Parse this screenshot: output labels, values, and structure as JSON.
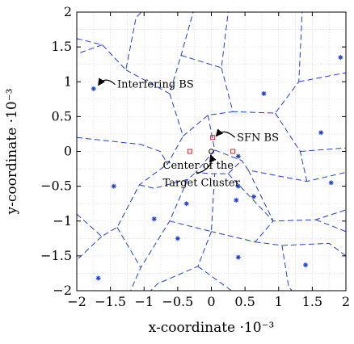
{
  "chart_data": {
    "type": "scatter",
    "title": "",
    "xlabel": "x-coordinate ·10⁻³",
    "ylabel": "y-coordinate ·10⁻³",
    "xlim": [
      -2,
      2
    ],
    "ylim": [
      -2,
      2
    ],
    "x_ticks": [
      -2,
      -1.5,
      -1,
      -0.5,
      0,
      0.5,
      1,
      1.5,
      2
    ],
    "y_ticks": [
      -2,
      -1.5,
      -1,
      -0.5,
      0,
      0.5,
      1,
      1.5,
      2
    ],
    "x_tick_labels": [
      "−2",
      "−1.5",
      "−1",
      "−0.5",
      "0",
      "0.5",
      "1",
      "1.5",
      "2"
    ],
    "y_tick_labels": [
      "−2",
      "−1.5",
      "−1",
      "−0.5",
      "0",
      "0.5",
      "1",
      "1.5",
      "2"
    ],
    "grid": true,
    "colors": {
      "bs": "#1f3fd6",
      "sfn": "#d62020",
      "cell_edges": "#1f3fd6",
      "grid": "#d8d8d8"
    },
    "series": [
      {
        "marker": "asterisk",
        "points": [
          [
            -1.75,
            0.9
          ],
          [
            -1.45,
            -0.5
          ],
          [
            -0.85,
            -0.97
          ],
          [
            -0.37,
            -0.75
          ],
          [
            -0.5,
            -1.25
          ],
          [
            -1.68,
            -1.82
          ],
          [
            0.4,
            -0.5
          ],
          [
            0.63,
            -0.65
          ],
          [
            0.37,
            -0.7
          ],
          [
            0.4,
            -0.07
          ],
          [
            0.78,
            0.83
          ],
          [
            1.63,
            0.27
          ],
          [
            1.78,
            -0.45
          ],
          [
            1.4,
            -1.63
          ],
          [
            0.4,
            -1.52
          ],
          [
            1.92,
            1.35
          ]
        ]
      },
      {
        "marker": "square",
        "points": [
          [
            -0.32,
            0.0
          ],
          [
            0.02,
            0.2
          ],
          [
            0.32,
            0.0
          ]
        ]
      },
      {
        "marker": "circle",
        "points": [
          [
            0.0,
            0.0
          ]
        ]
      }
    ],
    "cell_edges": [
      [
        [
          -2,
          1.62
        ],
        [
          -1.62,
          1.53
        ],
        [
          -1.27,
          1.17
        ],
        [
          -1.12,
          1.92
        ],
        [
          -1.04,
          2
        ]
      ],
      [
        [
          -1.62,
          1.53
        ],
        [
          -2,
          1.4
        ]
      ],
      [
        [
          -1.27,
          1.17
        ],
        [
          -0.62,
          0.83
        ],
        [
          -0.45,
          1.38
        ],
        [
          -0.27,
          2
        ]
      ],
      [
        [
          -0.45,
          1.38
        ],
        [
          0.15,
          1.2
        ],
        [
          0.25,
          2
        ]
      ],
      [
        [
          0.15,
          1.2
        ],
        [
          0.32,
          0.57
        ],
        [
          0.95,
          0.55
        ],
        [
          1.3,
          1.0
        ],
        [
          1.35,
          2
        ]
      ],
      [
        [
          1.3,
          1.0
        ],
        [
          2,
          1.13
        ]
      ],
      [
        [
          0.95,
          0.55
        ],
        [
          1.32,
          0.0
        ],
        [
          1.42,
          -0.43
        ]
      ],
      [
        [
          -0.62,
          0.83
        ],
        [
          -0.42,
          0.22
        ],
        [
          -0.05,
          0.52
        ],
        [
          0.32,
          0.57
        ]
      ],
      [
        [
          -2,
          0.2
        ],
        [
          -1.05,
          0.1
        ],
        [
          -0.76,
          0.0
        ],
        [
          -0.65,
          -0.18
        ],
        [
          -0.42,
          0.22
        ]
      ],
      [
        [
          -0.05,
          0.52
        ],
        [
          0.05,
          0.02
        ],
        [
          0.45,
          -0.13
        ],
        [
          0.55,
          -0.27
        ],
        [
          1.42,
          -0.43
        ],
        [
          2,
          -0.3
        ]
      ],
      [
        [
          1.32,
          0.0
        ],
        [
          2,
          0.05
        ]
      ],
      [
        [
          -2,
          -0.9
        ],
        [
          -1.63,
          -1.22
        ],
        [
          -1.4,
          -1.09
        ],
        [
          -1.07,
          -0.48
        ],
        [
          -0.65,
          -0.18
        ]
      ],
      [
        [
          -1.63,
          -1.22
        ],
        [
          -2,
          -1.56
        ]
      ],
      [
        [
          -1.07,
          -0.48
        ],
        [
          -0.85,
          -0.53
        ],
        [
          -0.35,
          -0.4
        ],
        [
          -0.23,
          -0.3
        ]
      ],
      [
        [
          0.05,
          0.02
        ],
        [
          -0.23,
          -0.3
        ],
        [
          0.0,
          -0.32
        ],
        [
          0.25,
          -0.32
        ],
        [
          0.45,
          -0.13
        ]
      ],
      [
        [
          -0.35,
          -0.4
        ],
        [
          -0.62,
          -1.0
        ],
        [
          -1.05,
          -1.67
        ],
        [
          -1.2,
          -2.0
        ]
      ],
      [
        [
          -0.62,
          -1.0
        ],
        [
          0.0,
          -1.15
        ],
        [
          0.05,
          -0.32
        ]
      ],
      [
        [
          -1.4,
          -1.09
        ],
        [
          -1.05,
          -1.67
        ]
      ],
      [
        [
          0.0,
          -1.15
        ],
        [
          -0.2,
          -1.65
        ],
        [
          -0.8,
          -1.9
        ],
        [
          -0.9,
          -2.0
        ]
      ],
      [
        [
          -0.2,
          -1.65
        ],
        [
          0.3,
          -2.0
        ]
      ],
      [
        [
          0.25,
          -0.32
        ],
        [
          0.92,
          -1.0
        ],
        [
          0.65,
          -1.3
        ],
        [
          0.0,
          -1.15
        ]
      ],
      [
        [
          0.55,
          -0.27
        ],
        [
          0.92,
          -1.0
        ],
        [
          1.55,
          -0.98
        ],
        [
          2,
          -0.84
        ]
      ],
      [
        [
          1.55,
          -0.98
        ],
        [
          2,
          -1.15
        ]
      ],
      [
        [
          0.65,
          -1.3
        ],
        [
          1.05,
          -1.35
        ],
        [
          1.15,
          -1.95
        ],
        [
          1.2,
          -2.0
        ]
      ],
      [
        [
          1.05,
          -1.35
        ],
        [
          1.75,
          -1.32
        ],
        [
          2,
          -1.5
        ]
      ]
    ],
    "annotations": [
      {
        "text": "Interfering BS",
        "target": [
          -1.75,
          0.9
        ],
        "label_at": [
          -1.4,
          0.96
        ]
      },
      {
        "text": "SFN BS",
        "target": [
          0.02,
          0.2
        ],
        "label_at": [
          0.38,
          0.2
        ]
      },
      {
        "text": "Center of the",
        "target": [
          0.0,
          0.0
        ],
        "label_at": [
          -0.72,
          -0.2
        ]
      },
      {
        "text": "Target Cluster",
        "target": [
          0.0,
          0.0
        ],
        "label_at": [
          -0.72,
          -0.45
        ]
      }
    ]
  }
}
